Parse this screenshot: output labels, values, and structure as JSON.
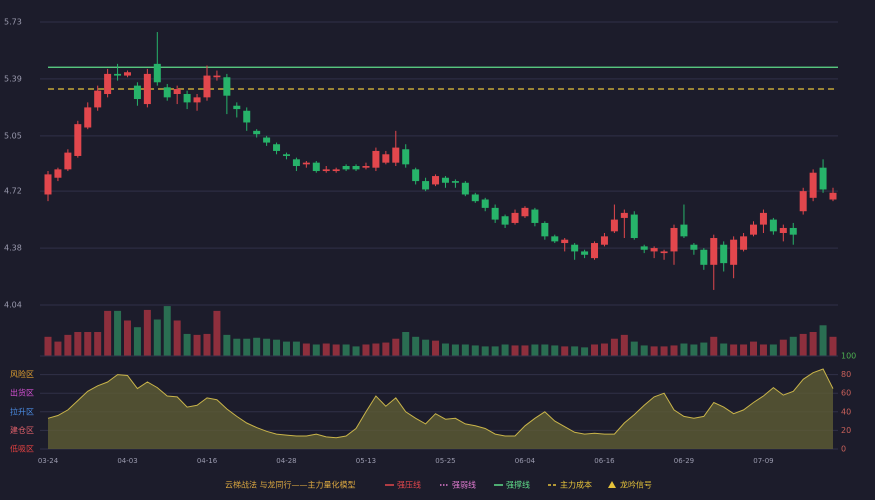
{
  "chart_data": [
    {
      "type": "candlestick",
      "categories": [
        "03-24",
        null,
        null,
        null,
        null,
        null,
        null,
        null,
        "04-03",
        null,
        null,
        null,
        null,
        null,
        null,
        null,
        "04-16",
        null,
        null,
        null,
        null,
        null,
        null,
        null,
        "04-28",
        null,
        null,
        null,
        null,
        null,
        null,
        null,
        "05-13",
        null,
        null,
        null,
        null,
        null,
        null,
        null,
        "05-25",
        null,
        null,
        null,
        null,
        null,
        null,
        null,
        "06-04",
        null,
        null,
        null,
        null,
        null,
        null,
        null,
        "06-16",
        null,
        null,
        null,
        null,
        null,
        null,
        null,
        "06-29",
        null,
        null,
        null,
        null,
        null,
        null,
        null,
        "07-09",
        null,
        null,
        null,
        null,
        null,
        null,
        null
      ],
      "open": [
        4.7,
        4.8,
        4.85,
        4.93,
        5.1,
        5.22,
        5.3,
        5.42,
        5.41,
        5.35,
        5.24,
        5.48,
        5.34,
        5.3,
        5.3,
        5.25,
        5.28,
        5.4,
        5.4,
        5.23,
        5.2,
        5.08,
        5.04,
        5.0,
        4.94,
        4.91,
        4.88,
        4.89,
        4.84,
        4.84,
        4.87,
        4.87,
        4.86,
        4.86,
        4.89,
        4.89,
        4.97,
        4.85,
        4.78,
        4.76,
        4.8,
        4.78,
        4.77,
        4.7,
        4.67,
        4.62,
        4.57,
        4.53,
        4.57,
        4.61,
        4.53,
        4.45,
        4.41,
        4.4,
        4.36,
        4.32,
        4.4,
        4.48,
        4.56,
        4.58,
        4.39,
        4.36,
        4.35,
        4.36,
        4.52,
        4.4,
        4.37,
        4.28,
        4.4,
        4.28,
        4.37,
        4.46,
        4.52,
        4.55,
        4.47,
        4.5,
        4.6,
        4.68,
        4.86,
        4.67
      ],
      "high": [
        4.84,
        4.86,
        4.97,
        5.14,
        5.25,
        5.35,
        5.45,
        5.48,
        5.44,
        5.37,
        5.45,
        5.67,
        5.36,
        5.35,
        5.32,
        5.3,
        5.47,
        5.44,
        5.42,
        5.25,
        5.22,
        5.09,
        5.05,
        5.01,
        4.95,
        4.92,
        4.9,
        4.9,
        4.87,
        4.86,
        4.88,
        4.88,
        4.89,
        4.98,
        4.96,
        5.08,
        5.0,
        4.86,
        4.8,
        4.82,
        4.81,
        4.79,
        4.78,
        4.71,
        4.68,
        4.64,
        4.58,
        4.61,
        4.63,
        4.62,
        4.54,
        4.46,
        4.44,
        4.41,
        4.37,
        4.42,
        4.47,
        4.64,
        4.61,
        4.6,
        4.4,
        4.39,
        4.37,
        4.52,
        4.64,
        4.41,
        4.38,
        4.46,
        4.42,
        4.45,
        4.47,
        4.54,
        4.61,
        4.56,
        4.52,
        4.53,
        4.74,
        4.85,
        4.91,
        4.74
      ],
      "low": [
        4.66,
        4.78,
        4.84,
        4.92,
        5.09,
        5.2,
        5.28,
        5.38,
        5.4,
        5.23,
        5.22,
        5.35,
        5.26,
        5.24,
        5.21,
        5.2,
        5.26,
        5.38,
        5.18,
        5.16,
        5.08,
        5.04,
        4.99,
        4.94,
        4.91,
        4.84,
        4.86,
        4.83,
        4.83,
        4.83,
        4.84,
        4.84,
        4.85,
        4.84,
        4.88,
        4.87,
        4.86,
        4.76,
        4.72,
        4.75,
        4.74,
        4.74,
        4.69,
        4.65,
        4.6,
        4.53,
        4.5,
        4.52,
        4.56,
        4.51,
        4.43,
        4.41,
        4.36,
        4.31,
        4.32,
        4.31,
        4.39,
        4.47,
        4.44,
        4.43,
        4.35,
        4.32,
        4.31,
        4.28,
        4.44,
        4.34,
        4.25,
        4.13,
        4.24,
        4.2,
        4.36,
        4.45,
        4.47,
        4.46,
        4.42,
        4.4,
        4.58,
        4.66,
        4.71,
        4.66
      ],
      "close": [
        4.82,
        4.85,
        4.95,
        5.12,
        5.22,
        5.32,
        5.42,
        5.41,
        5.43,
        5.27,
        5.42,
        5.37,
        5.28,
        5.33,
        5.25,
        5.28,
        5.41,
        5.41,
        5.29,
        5.21,
        5.13,
        5.06,
        5.01,
        4.96,
        4.93,
        4.87,
        4.89,
        4.84,
        4.85,
        4.85,
        4.85,
        4.85,
        4.87,
        4.96,
        4.94,
        4.98,
        4.88,
        4.78,
        4.73,
        4.81,
        4.77,
        4.77,
        4.7,
        4.66,
        4.62,
        4.55,
        4.52,
        4.59,
        4.62,
        4.53,
        4.45,
        4.42,
        4.43,
        4.36,
        4.34,
        4.41,
        4.45,
        4.55,
        4.59,
        4.44,
        4.37,
        4.38,
        4.36,
        4.5,
        4.45,
        4.37,
        4.28,
        4.44,
        4.29,
        4.43,
        4.45,
        4.52,
        4.59,
        4.48,
        4.5,
        4.46,
        4.72,
        4.83,
        4.73,
        4.71
      ],
      "up_color": "#e2474d",
      "down_color": "#27b36a",
      "ylim": [
        4.04,
        5.73
      ],
      "yticks": [
        4.04,
        4.38,
        4.72,
        5.05,
        5.39,
        5.73
      ],
      "grid": true,
      "legend": {
        "title": "云梯战法 与龙同行——主力量化模型",
        "title_color": "#d9a640",
        "items": [
          {
            "name": "强压线",
            "color": "#e2474d",
            "style": "solid"
          },
          {
            "name": "强弱线",
            "color": "#e07bd0",
            "style": "dotted"
          },
          {
            "name": "强撑线",
            "color": "#5fdc8a",
            "style": "solid",
            "value": 5.46
          },
          {
            "name": "主力成本",
            "color": "#e5c23a",
            "style": "dashed",
            "value": 5.33
          },
          {
            "name": "龙吟信号",
            "color": "#e5c23a",
            "style": "triangle"
          }
        ]
      }
    },
    {
      "type": "volume",
      "values": [
        20,
        15,
        22,
        25,
        25,
        25,
        47,
        47,
        37,
        30,
        48,
        38,
        52,
        37,
        23,
        22,
        23,
        47,
        22,
        18,
        18,
        19,
        18,
        17,
        15,
        15,
        13,
        12,
        13,
        12,
        12,
        10,
        12,
        13,
        14,
        18,
        25,
        20,
        17,
        16,
        13,
        12,
        12,
        11,
        10,
        10,
        12,
        11,
        11,
        12,
        12,
        11,
        10,
        10,
        9,
        12,
        13,
        18,
        22,
        15,
        11,
        10,
        10,
        11,
        13,
        12,
        14,
        20,
        13,
        12,
        12,
        15,
        12,
        12,
        17,
        20,
        23,
        25,
        32,
        20
      ],
      "up_color": "#8e2f3d",
      "down_color": "#2a6e52",
      "ylim": [
        0,
        50
      ]
    },
    {
      "type": "area",
      "values": [
        33,
        36,
        42,
        52,
        62,
        68,
        72,
        80,
        79,
        65,
        72,
        66,
        57,
        56,
        45,
        47,
        55,
        53,
        43,
        35,
        28,
        23,
        19,
        16,
        15,
        14,
        14,
        16,
        13,
        12,
        14,
        22,
        40,
        57,
        46,
        55,
        40,
        33,
        27,
        38,
        32,
        33,
        27,
        25,
        22,
        16,
        14,
        14,
        25,
        33,
        40,
        30,
        24,
        18,
        16,
        17,
        16,
        16,
        28,
        37,
        47,
        56,
        60,
        42,
        35,
        33,
        35,
        50,
        45,
        38,
        42,
        50,
        57,
        66,
        58,
        62,
        75,
        82,
        86,
        65
      ],
      "color": "#c9b44a",
      "fill": "#5e5c35",
      "ylim": [
        0,
        100
      ],
      "yticks": [
        0,
        20,
        40,
        60,
        80,
        100
      ],
      "grid": true,
      "zones": [
        {
          "value": 80,
          "label": "风险区",
          "color": "#e0a030"
        },
        {
          "value": 60,
          "label": "出货区",
          "color": "#d04fd0"
        },
        {
          "value": 40,
          "label": "拉升区",
          "color": "#4a8ae0"
        },
        {
          "value": 20,
          "label": "建仓区",
          "color": "#e0606a"
        },
        {
          "value": 0,
          "label": "低吸区",
          "color": "#e04040"
        }
      ]
    }
  ]
}
